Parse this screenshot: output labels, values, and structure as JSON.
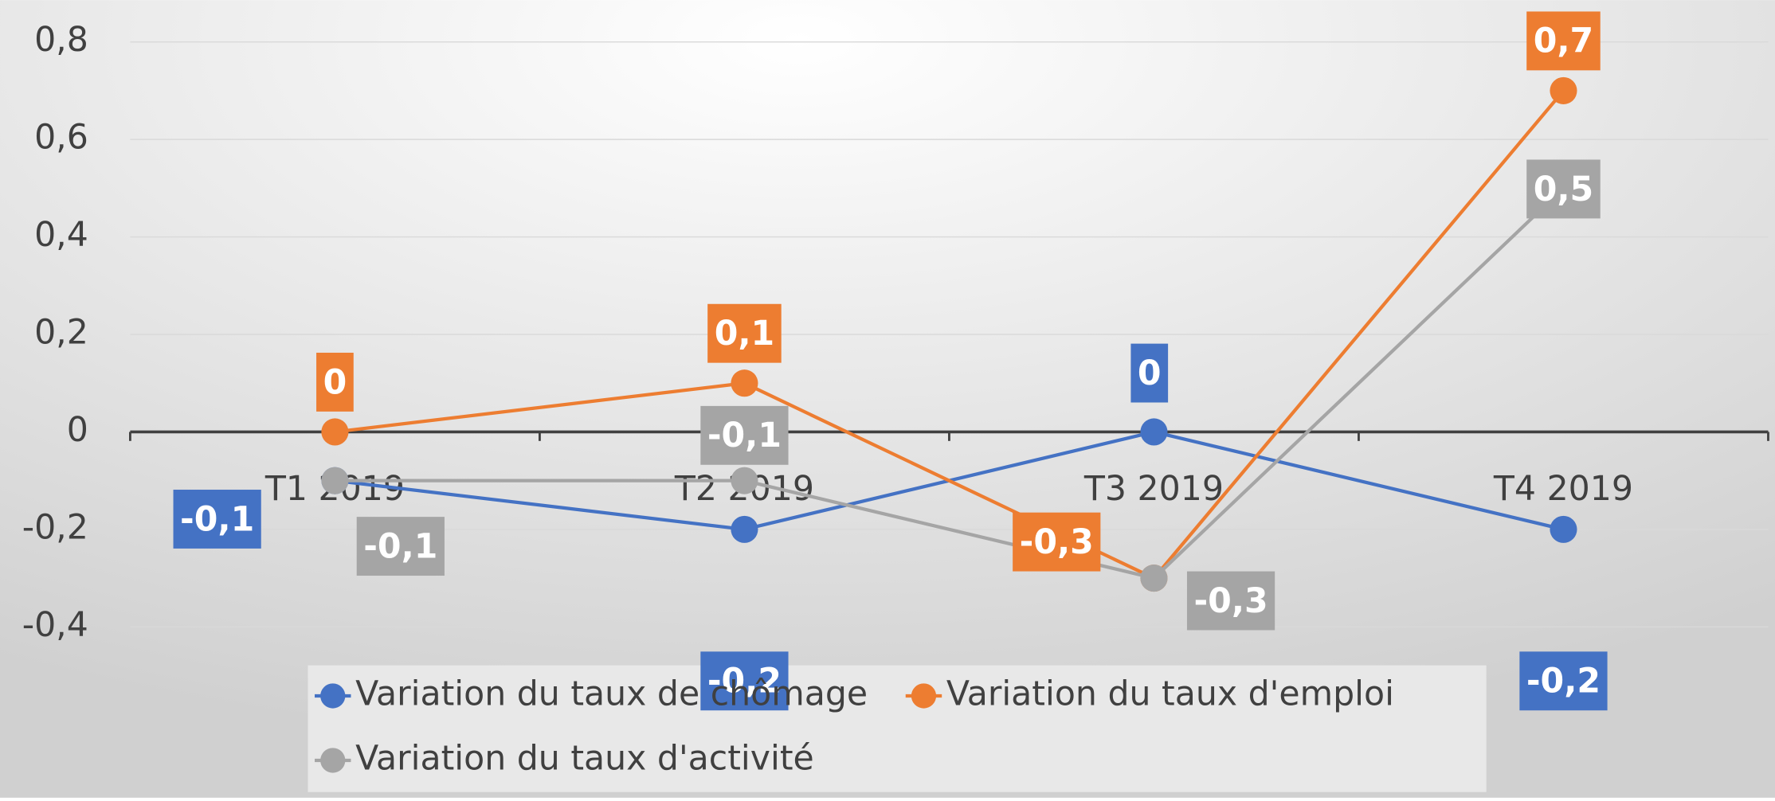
{
  "chart_data": {
    "type": "line",
    "categories": [
      "T1 2019",
      "T2 2019",
      "T3 2019",
      "T4 2019"
    ],
    "series": [
      {
        "name": "Variation du taux de chômage",
        "color": "#4472c4",
        "values": [
          -0.1,
          -0.2,
          0,
          -0.2
        ],
        "value_labels": [
          "-0,1",
          "-0,2",
          "0",
          "-0,2"
        ]
      },
      {
        "name": "Variation du taux d'emploi",
        "color": "#ed7d31",
        "values": [
          0,
          0.1,
          -0.3,
          0.7
        ],
        "value_labels": [
          "0",
          "0,1",
          "-0,3",
          "0,7"
        ]
      },
      {
        "name": "Variation du taux d'activité",
        "color": "#a5a5a5",
        "values": [
          -0.1,
          -0.1,
          -0.3,
          0.5
        ],
        "value_labels": [
          "-0,1",
          "-0,1",
          "-0,3",
          "0,5"
        ]
      }
    ],
    "ylim": [
      -0.4,
      0.8
    ],
    "yticks": [
      {
        "value": -0.4,
        "label": "-0,4"
      },
      {
        "value": -0.2,
        "label": "-0,2"
      },
      0,
      {
        "value": 0.2,
        "label": "0,2"
      },
      {
        "value": 0.4,
        "label": "0,4"
      },
      {
        "value": 0.6,
        "label": "0,6"
      },
      {
        "value": 0.8,
        "label": "0,8"
      }
    ],
    "grid": true,
    "legend": "bottom"
  }
}
